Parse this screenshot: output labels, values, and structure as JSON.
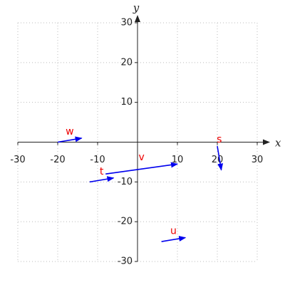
{
  "chart_data": {
    "type": "vector",
    "x_label": "x",
    "y_label": "y",
    "xlim": [
      -30,
      30
    ],
    "ylim": [
      -30,
      30
    ],
    "xticks": [
      -30,
      -20,
      -10,
      10,
      20,
      30
    ],
    "yticks": [
      -30,
      -20,
      -10,
      10,
      20,
      30
    ],
    "grid": true,
    "color": "#0000ee",
    "label_color": "#ee0000",
    "vectors": [
      {
        "name": "w",
        "x0": -20,
        "y0": 0,
        "x1": -14,
        "y1": 1
      },
      {
        "name": "t",
        "x0": -12,
        "y0": -10,
        "x1": -6,
        "y1": -9
      },
      {
        "name": "v",
        "x0": -8,
        "y0": -8,
        "x1": 10,
        "y1": -5.5
      },
      {
        "name": "s",
        "x0": 20,
        "y0": -1,
        "x1": 21,
        "y1": -7
      },
      {
        "name": "u",
        "x0": 6,
        "y0": -25,
        "x1": 12,
        "y1": -24
      }
    ]
  }
}
